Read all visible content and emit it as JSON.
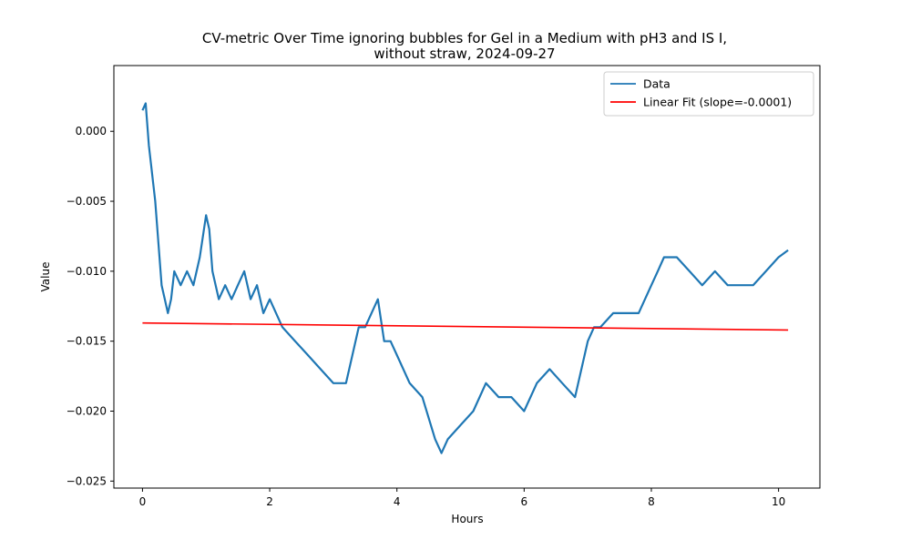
{
  "chart_data": {
    "type": "line",
    "title_line1": "CV-metric Over Time ignoring bubbles for Gel in a Medium with pH3 and IS I,",
    "title_line2": "without straw, 2024-09-27",
    "xlabel": "Hours",
    "ylabel": "Value",
    "xlim": [
      -0.45,
      10.65
    ],
    "ylim": [
      -0.0255,
      0.0047
    ],
    "x_ticks": [
      0,
      2,
      4,
      6,
      8,
      10
    ],
    "x_tick_labels": [
      "0",
      "2",
      "4",
      "6",
      "8",
      "10"
    ],
    "y_ticks": [
      0.0,
      -0.005,
      -0.01,
      -0.015,
      -0.02,
      -0.025
    ],
    "y_tick_labels": [
      "0.000",
      "−0.005",
      "−0.010",
      "−0.015",
      "−0.020",
      "−0.025"
    ],
    "grid": false,
    "legend_position": "top-right",
    "legend": [
      "Data",
      "Linear Fit (slope=-0.0001)"
    ],
    "series": [
      {
        "name": "Data",
        "color": "#1f77b4",
        "x": [
          0.0,
          0.05,
          0.1,
          0.15,
          0.2,
          0.25,
          0.3,
          0.35,
          0.4,
          0.45,
          0.5,
          0.6,
          0.7,
          0.8,
          0.9,
          1.0,
          1.05,
          1.1,
          1.2,
          1.3,
          1.4,
          1.5,
          1.6,
          1.7,
          1.8,
          1.9,
          2.0,
          2.2,
          2.4,
          2.6,
          2.8,
          3.0,
          3.2,
          3.4,
          3.5,
          3.6,
          3.7,
          3.8,
          3.9,
          4.0,
          4.2,
          4.4,
          4.6,
          4.7,
          4.8,
          5.0,
          5.2,
          5.4,
          5.6,
          5.8,
          6.0,
          6.2,
          6.4,
          6.6,
          6.8,
          7.0,
          7.1,
          7.2,
          7.4,
          7.6,
          7.8,
          8.0,
          8.1,
          8.2,
          8.4,
          8.6,
          8.8,
          9.0,
          9.2,
          9.4,
          9.6,
          9.8,
          10.0,
          10.15
        ],
        "y": [
          0.0015,
          0.002,
          -0.001,
          -0.003,
          -0.005,
          -0.008,
          -0.011,
          -0.012,
          -0.013,
          -0.012,
          -0.01,
          -0.011,
          -0.01,
          -0.011,
          -0.009,
          -0.006,
          -0.007,
          -0.01,
          -0.012,
          -0.011,
          -0.012,
          -0.011,
          -0.01,
          -0.012,
          -0.011,
          -0.013,
          -0.012,
          -0.014,
          -0.015,
          -0.016,
          -0.017,
          -0.018,
          -0.018,
          -0.014,
          -0.014,
          -0.013,
          -0.012,
          -0.015,
          -0.015,
          -0.016,
          -0.018,
          -0.019,
          -0.022,
          -0.023,
          -0.022,
          -0.021,
          -0.02,
          -0.018,
          -0.019,
          -0.019,
          -0.02,
          -0.018,
          -0.017,
          -0.018,
          -0.019,
          -0.015,
          -0.014,
          -0.014,
          -0.013,
          -0.013,
          -0.013,
          -0.011,
          -0.01,
          -0.009,
          -0.009,
          -0.01,
          -0.011,
          -0.01,
          -0.011,
          -0.011,
          -0.011,
          -0.01,
          -0.009,
          -0.0085
        ]
      },
      {
        "name": "Linear Fit (slope=-0.0001)",
        "color": "#ff0000",
        "x": [
          0.0,
          10.15
        ],
        "y": [
          -0.0137,
          -0.0142
        ]
      }
    ]
  }
}
